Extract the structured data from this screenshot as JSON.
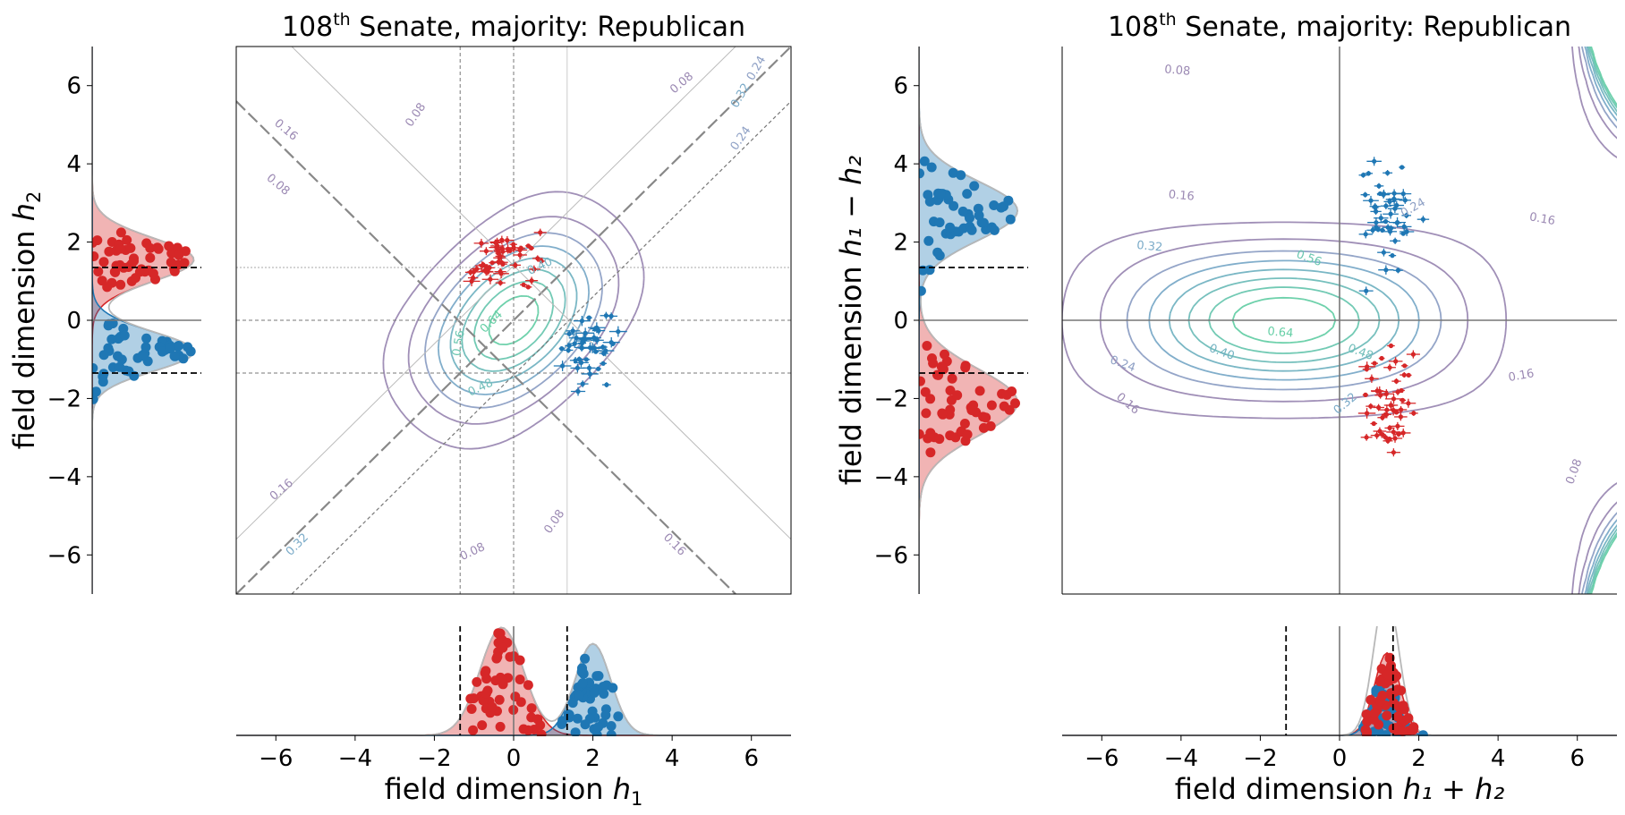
{
  "chart_data": [
    {
      "type": "scatter",
      "panel": "left",
      "title_prefix": "108",
      "title_sup": "th",
      "title_suffix": " Senate, majority: Republican",
      "xlabel_prefix": "field dimension ",
      "xlabel_var": "h",
      "xlabel_sub": "1",
      "ylabel_prefix": "field dimension ",
      "ylabel_var": "h",
      "ylabel_sub": "2",
      "xlim": [
        -7,
        7
      ],
      "ylim": [
        -7,
        7
      ],
      "ticks": [
        "−6",
        "−4",
        "−2",
        "0",
        "2",
        "4",
        "6"
      ],
      "threshold": 1.35,
      "contour_labels": [
        "0.08",
        "0.08",
        "0.08",
        "0.16",
        "0.16",
        "0.24",
        "0.32",
        "0.40",
        "0.48",
        "0.56",
        "0.64",
        "0.08",
        "0.16",
        "0.24",
        "0.32",
        "0.08"
      ],
      "republican": {
        "cx": -0.3,
        "cy": 1.55,
        "sx": 0.42,
        "sy": 0.35,
        "n": 52
      },
      "democrat": {
        "cx": 2.0,
        "cy": -0.8,
        "sx": 0.35,
        "sy": 0.4,
        "n": 48
      },
      "colors": {
        "republican": "#d62728",
        "democrat": "#1f77b4"
      }
    },
    {
      "type": "scatter",
      "panel": "right",
      "title_prefix": "108",
      "title_sup": "th",
      "title_suffix": " Senate, majority: Republican",
      "xlabel_prefix": "field dimension ",
      "xlabel_expr": "h₁ + h₂",
      "ylabel_prefix": "field dimension ",
      "ylabel_expr": "h₁ − h₂",
      "xlim": [
        -7,
        7
      ],
      "ylim": [
        -7,
        7
      ],
      "ticks": [
        "−6",
        "−4",
        "−2",
        "0",
        "2",
        "4",
        "6"
      ],
      "threshold": 1.35,
      "contour_labels": [
        "0.08",
        "0.16",
        "0.16",
        "0.16",
        "0.24",
        "0.32",
        "0.40",
        "0.48",
        "0.56",
        "0.64",
        "0.24",
        "0.32",
        "0.16",
        "0.08"
      ],
      "republican": {
        "cx": 1.25,
        "cy": -2.1,
        "sx": 0.35,
        "sy": 0.7,
        "n": 52
      },
      "democrat": {
        "cx": 1.15,
        "cy": 2.8,
        "sx": 0.3,
        "sy": 0.65,
        "n": 48
      },
      "colors": {
        "republican": "#d62728",
        "democrat": "#1f77b4"
      }
    }
  ]
}
